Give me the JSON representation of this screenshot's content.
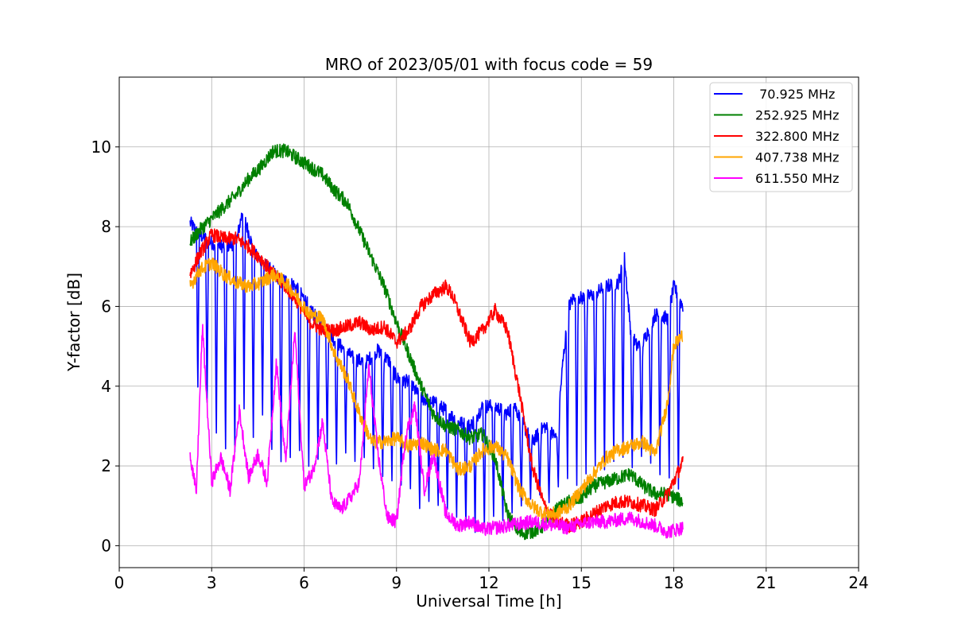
{
  "chart_data": {
    "type": "line",
    "title": "MRO of 2023/05/01 with focus code = 59",
    "xlabel": "Universal Time [h]",
    "ylabel": "Y-factor [dB]",
    "xlim": [
      0,
      24
    ],
    "ylim": [
      -0.55,
      11.75
    ],
    "xticks": [
      0,
      3,
      6,
      9,
      12,
      15,
      18,
      21,
      24
    ],
    "yticks": [
      0,
      2,
      4,
      6,
      8,
      10
    ],
    "grid": true,
    "legend_position": "top-right",
    "series": [
      {
        "name": " 70.925 MHz",
        "color": "#0000ff",
        "x": [
          2.3,
          2.6,
          3.0,
          3.4,
          3.8,
          4.0,
          4.4,
          4.8,
          5.2,
          5.6,
          6.0,
          6.4,
          6.8,
          7.2,
          7.6,
          8.0,
          8.4,
          8.8,
          9.0,
          9.4,
          9.8,
          10.2,
          10.6,
          11.0,
          11.4,
          11.8,
          12.2,
          12.6,
          12.8,
          13.0,
          13.4,
          13.8,
          14.2,
          14.4,
          14.6,
          14.8,
          15.0,
          15.4,
          15.8,
          16.2,
          16.4,
          16.6,
          16.8,
          17.0,
          17.4,
          17.8,
          18.0,
          18.3
        ],
        "y": [
          8.1,
          7.8,
          7.6,
          7.5,
          7.6,
          8.4,
          7.3,
          7.0,
          6.7,
          6.6,
          6.2,
          5.7,
          5.3,
          5.0,
          4.7,
          4.6,
          4.9,
          4.6,
          4.2,
          4.1,
          3.7,
          3.6,
          3.4,
          3.1,
          3.0,
          3.5,
          3.5,
          3.3,
          3.6,
          3.2,
          2.6,
          3.0,
          2.7,
          4.6,
          6.0,
          6.3,
          6.2,
          6.3,
          6.5,
          6.6,
          7.2,
          5.4,
          5.0,
          5.1,
          5.8,
          5.7,
          6.5,
          6.0
        ],
        "dip_x": [
          2.55,
          2.85,
          3.15,
          3.45,
          3.75,
          4.05,
          4.35,
          4.65,
          4.95,
          5.25,
          5.55,
          5.85,
          6.15,
          6.45,
          6.75,
          7.05,
          7.35,
          7.65,
          7.95,
          8.25,
          8.55,
          8.85,
          9.15,
          9.45,
          9.75,
          10.05,
          10.35,
          10.65,
          10.95,
          11.25,
          11.55,
          11.85,
          12.15,
          12.45,
          12.75,
          13.05,
          13.35,
          13.65,
          13.95,
          14.25,
          14.55,
          14.85,
          15.15,
          15.45,
          15.75,
          16.05,
          16.35,
          16.65,
          16.95,
          17.25,
          17.55,
          17.85,
          18.15
        ],
        "dip_y": [
          3.8,
          3.4,
          2.6,
          2.2,
          2.1,
          3.2,
          2.5,
          3.1,
          2.2,
          1.9,
          2.0,
          2.2,
          1.8,
          2.0,
          2.3,
          1.9,
          2.2,
          2.0,
          2.1,
          1.8,
          1.6,
          1.5,
          1.4,
          1.3,
          0.8,
          1.0,
          0.9,
          0.8,
          0.6,
          0.4,
          0.2,
          0.3,
          0.6,
          0.5,
          0.7,
          0.9,
          1.1,
          1.2,
          1.0,
          1.4,
          1.5,
          1.3,
          1.6,
          1.8,
          1.7,
          1.9,
          2.0,
          1.8,
          2.1,
          1.9,
          1.6,
          1.5,
          1.2
        ]
      },
      {
        "name": "252.925 MHz",
        "color": "#008000",
        "x": [
          2.3,
          2.6,
          3.0,
          3.4,
          3.8,
          4.2,
          4.6,
          5.0,
          5.4,
          5.8,
          6.2,
          6.6,
          7.0,
          7.4,
          7.8,
          8.2,
          8.6,
          9.0,
          9.4,
          9.8,
          10.2,
          10.6,
          11.0,
          11.4,
          11.8,
          12.2,
          12.6,
          13.0,
          13.4,
          13.8,
          14.2,
          14.6,
          15.0,
          15.4,
          15.8,
          16.2,
          16.6,
          17.0,
          17.4,
          17.8,
          18.3
        ],
        "y": [
          7.6,
          7.9,
          8.2,
          8.5,
          8.8,
          9.2,
          9.5,
          9.9,
          9.9,
          9.7,
          9.5,
          9.3,
          8.9,
          8.6,
          7.9,
          7.2,
          6.5,
          5.6,
          4.8,
          4.0,
          3.3,
          3.0,
          2.9,
          2.7,
          2.8,
          2.2,
          0.8,
          0.3,
          0.35,
          0.5,
          0.9,
          1.1,
          1.2,
          1.5,
          1.6,
          1.7,
          1.8,
          1.5,
          1.3,
          1.3,
          1.1
        ]
      },
      {
        "name": "322.800 MHz",
        "color": "#ff0000",
        "x": [
          2.3,
          2.6,
          3.0,
          3.4,
          3.8,
          4.2,
          4.6,
          5.0,
          5.4,
          5.8,
          6.2,
          6.6,
          7.0,
          7.4,
          7.8,
          8.2,
          8.6,
          9.0,
          9.4,
          9.8,
          10.2,
          10.6,
          10.8,
          11.0,
          11.4,
          11.8,
          12.2,
          12.6,
          13.0,
          13.4,
          13.8,
          14.2,
          14.6,
          15.0,
          15.4,
          15.8,
          16.2,
          16.6,
          17.0,
          17.4,
          17.8,
          18.3
        ],
        "y": [
          6.8,
          7.3,
          7.8,
          7.7,
          7.7,
          7.5,
          7.2,
          6.8,
          6.5,
          6.1,
          5.6,
          5.4,
          5.4,
          5.5,
          5.6,
          5.4,
          5.5,
          5.1,
          5.4,
          6.0,
          6.3,
          6.5,
          6.3,
          5.9,
          5.1,
          5.4,
          5.9,
          5.4,
          3.8,
          2.0,
          1.0,
          0.6,
          0.5,
          0.6,
          0.8,
          1.0,
          1.1,
          1.1,
          1.0,
          0.9,
          1.3,
          2.1
        ]
      },
      {
        "name": "407.738 MHz",
        "color": "#ffa500",
        "x": [
          2.3,
          2.6,
          3.0,
          3.4,
          3.8,
          4.2,
          4.6,
          5.0,
          5.4,
          5.8,
          6.2,
          6.6,
          7.0,
          7.4,
          7.8,
          8.2,
          8.6,
          9.0,
          9.4,
          9.8,
          10.2,
          10.6,
          11.0,
          11.4,
          11.8,
          12.2,
          12.6,
          13.0,
          13.4,
          13.8,
          14.2,
          14.6,
          15.0,
          15.4,
          15.8,
          16.2,
          16.6,
          17.0,
          17.4,
          17.8,
          18.0,
          18.3
        ],
        "y": [
          6.5,
          6.9,
          7.1,
          6.8,
          6.6,
          6.5,
          6.6,
          6.8,
          6.6,
          6.2,
          5.8,
          5.7,
          4.8,
          4.2,
          3.3,
          2.6,
          2.6,
          2.7,
          2.5,
          2.6,
          2.4,
          2.4,
          1.9,
          2.0,
          2.4,
          2.5,
          2.2,
          1.4,
          1.0,
          0.8,
          0.8,
          1.0,
          1.4,
          1.8,
          2.2,
          2.4,
          2.5,
          2.6,
          2.3,
          3.6,
          5.0,
          5.3
        ]
      },
      {
        "name": "611.550 MHz",
        "color": "#ff00ff",
        "x": [
          2.3,
          2.5,
          2.7,
          3.0,
          3.3,
          3.6,
          3.9,
          4.2,
          4.5,
          4.8,
          5.1,
          5.4,
          5.7,
          6.0,
          6.3,
          6.6,
          6.9,
          7.2,
          7.5,
          7.8,
          8.1,
          8.4,
          8.7,
          9.0,
          9.3,
          9.6,
          9.9,
          10.2,
          10.6,
          11.0,
          11.4,
          11.8,
          12.2,
          12.6,
          13.0,
          13.4,
          13.8,
          14.2,
          14.6,
          15.0,
          15.4,
          15.8,
          16.2,
          16.6,
          17.0,
          17.4,
          17.8,
          18.3
        ],
        "y": [
          2.3,
          1.3,
          5.5,
          1.6,
          2.2,
          1.4,
          3.4,
          1.7,
          2.3,
          1.6,
          4.6,
          2.1,
          5.4,
          1.5,
          1.9,
          3.1,
          1.1,
          0.9,
          1.2,
          1.6,
          4.5,
          2.3,
          0.7,
          0.6,
          2.8,
          3.5,
          1.4,
          2.3,
          0.8,
          0.5,
          0.6,
          0.4,
          0.45,
          0.5,
          0.55,
          0.6,
          0.55,
          0.5,
          0.45,
          0.55,
          0.6,
          0.6,
          0.65,
          0.7,
          0.6,
          0.5,
          0.35,
          0.45
        ]
      }
    ]
  }
}
